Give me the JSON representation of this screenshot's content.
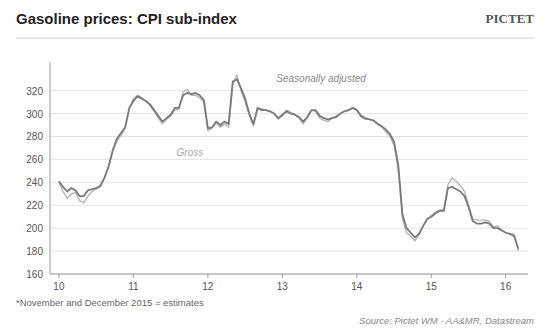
{
  "chart_data": {
    "type": "line",
    "title": "Gasoline prices: CPI sub-index",
    "logo": "PICTET",
    "footnote": "*November and December 2015 = estimates",
    "source": "Source: Pictet WM - AA&MR, Datastream",
    "annotations": [
      {
        "text": "Seasonally adjusted",
        "x": 12.92,
        "y": 336
      },
      {
        "text": "Gross",
        "x": 11.58,
        "y": 272
      }
    ],
    "xlim": [
      9.88,
      16.3
    ],
    "xticks": [
      10,
      11,
      12,
      13,
      14,
      15,
      16
    ],
    "ylim": [
      160,
      345
    ],
    "yticks": [
      160,
      180,
      200,
      220,
      240,
      260,
      280,
      300,
      320
    ],
    "grid": true,
    "x": [
      10,
      10.0556,
      10.1112,
      10.1668,
      10.2223,
      10.2779,
      10.3335,
      10.3891,
      10.4447,
      10.5003,
      10.5559,
      10.6114,
      10.667,
      10.7226,
      10.7782,
      10.8338,
      10.8894,
      10.945,
      11.0005,
      11.0561,
      11.1117,
      11.1673,
      11.2229,
      11.2785,
      11.3341,
      11.3896,
      11.4452,
      11.5008,
      11.5564,
      11.612,
      11.6676,
      11.7232,
      11.7787,
      11.8343,
      11.8899,
      11.9455,
      12.0011,
      12.0567,
      12.1123,
      12.1678,
      12.2234,
      12.279,
      12.3346,
      12.3902,
      12.4458,
      12.5014,
      12.5569,
      12.6125,
      12.6681,
      12.7237,
      12.7793,
      12.8349,
      12.8905,
      12.946,
      13.0016,
      13.0572,
      13.1128,
      13.1684,
      13.224,
      13.2795,
      13.3351,
      13.3907,
      13.4463,
      13.5019,
      13.5575,
      13.6131,
      13.6686,
      13.7242,
      13.7798,
      13.8354,
      13.891,
      13.9466,
      14.0022,
      14.0577,
      14.1133,
      14.1689,
      14.2245,
      14.2801,
      14.3357,
      14.3913,
      14.4468,
      14.5024,
      14.558,
      14.6136,
      14.6692,
      14.7248,
      14.7804,
      14.8359,
      14.8915,
      14.9471,
      15.0027,
      15.0583,
      15.1139,
      15.1695,
      15.225,
      15.2806,
      15.3362,
      15.3918,
      15.4474,
      15.503,
      15.5586,
      15.6141,
      15.6697,
      15.7253,
      15.7809,
      15.8365,
      15.8921,
      15.9477,
      16.0032,
      16.0588,
      16.1144,
      16.17
    ],
    "series": [
      {
        "name": "Gross",
        "color": "#b5b5b5",
        "values": [
          240,
          232,
          226,
          230,
          231,
          224,
          222,
          228,
          232,
          234,
          236,
          244,
          253,
          267,
          276,
          281,
          287,
          304,
          313,
          316,
          314,
          311,
          307,
          302,
          296,
          291,
          295,
          298,
          303,
          304,
          319,
          321,
          316,
          316,
          314,
          310,
          285,
          287,
          292,
          288,
          291,
          288,
          325,
          334,
          320,
          310,
          298,
          289,
          304,
          304,
          303,
          302,
          300,
          295,
          298,
          303,
          301,
          299,
          296,
          291,
          296,
          303,
          302,
          296,
          294,
          293,
          296,
          298,
          300,
          302,
          303,
          305,
          303,
          297,
          295,
          295,
          294,
          291,
          288,
          284,
          280,
          272,
          250,
          208,
          196,
          193,
          189,
          194,
          202,
          208,
          211,
          214,
          216,
          216,
          238,
          244,
          241,
          237,
          232,
          220,
          208,
          207,
          207,
          207,
          206,
          201,
          202,
          198,
          196,
          195,
          195,
          180
        ]
      },
      {
        "name": "Seasonally adjusted",
        "color": "#7a7a7a",
        "values": [
          241,
          236,
          232,
          235,
          233,
          228,
          228,
          233,
          234,
          235,
          237,
          244,
          254,
          268,
          278,
          283,
          288,
          305,
          311,
          315,
          313,
          311,
          308,
          303,
          298,
          293,
          296,
          299,
          305,
          305,
          316,
          318,
          317,
          318,
          316,
          312,
          287,
          288,
          293,
          290,
          293,
          291,
          328,
          330,
          322,
          313,
          300,
          291,
          305,
          303,
          303,
          302,
          300,
          296,
          299,
          302,
          300,
          299,
          297,
          293,
          297,
          303,
          303,
          298,
          296,
          295,
          296,
          297,
          300,
          302,
          303,
          305,
          303,
          298,
          296,
          295,
          294,
          291,
          289,
          286,
          282,
          275,
          255,
          212,
          200,
          196,
          192,
          195,
          202,
          208,
          210,
          213,
          215,
          215,
          235,
          236,
          234,
          232,
          228,
          218,
          206,
          204,
          204,
          205,
          204,
          200,
          200,
          198,
          196,
          195,
          193,
          182
        ]
      }
    ]
  }
}
